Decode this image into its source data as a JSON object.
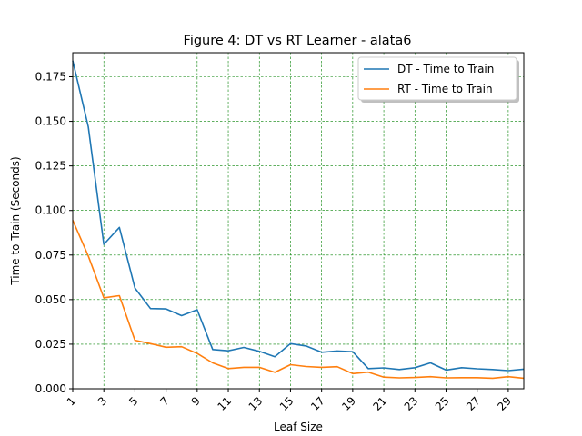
{
  "chart_data": {
    "type": "line",
    "title": "Figure 4: DT vs RT Learner - alata6",
    "xlabel": "Leaf Size",
    "ylabel": "Time to Train (Seconds)",
    "xlim": [
      1,
      30
    ],
    "ylim": [
      0,
      0.1885
    ],
    "xticks": [
      1,
      3,
      5,
      7,
      9,
      11,
      13,
      15,
      17,
      19,
      21,
      23,
      25,
      27,
      29
    ],
    "yticks": [
      "0.000",
      "0.025",
      "0.050",
      "0.075",
      "0.100",
      "0.125",
      "0.150",
      "0.175"
    ],
    "grid": true,
    "grid_color": "#008000",
    "legend_position": "upper right",
    "x": [
      1,
      2,
      3,
      4,
      5,
      6,
      7,
      8,
      9,
      10,
      11,
      12,
      13,
      14,
      15,
      16,
      17,
      18,
      19,
      20,
      21,
      22,
      23,
      24,
      25,
      26,
      27,
      28,
      29,
      30
    ],
    "series": [
      {
        "name": "DT - Time to Train",
        "color": "#1f77b4",
        "values": [
          0.184,
          0.147,
          0.081,
          0.0905,
          0.0565,
          0.045,
          0.0448,
          0.041,
          0.0443,
          0.022,
          0.0213,
          0.0232,
          0.021,
          0.018,
          0.0253,
          0.024,
          0.0205,
          0.0212,
          0.0208,
          0.0113,
          0.0117,
          0.0108,
          0.0118,
          0.0145,
          0.0105,
          0.0118,
          0.0112,
          0.0108,
          0.0102,
          0.011
        ]
      },
      {
        "name": "RT - Time to Train",
        "color": "#ff7f0e",
        "values": [
          0.0945,
          0.0745,
          0.051,
          0.0522,
          0.0272,
          0.0253,
          0.0233,
          0.0236,
          0.0198,
          0.0145,
          0.0113,
          0.012,
          0.012,
          0.0092,
          0.0135,
          0.0125,
          0.012,
          0.0124,
          0.0085,
          0.0093,
          0.0065,
          0.0061,
          0.0063,
          0.0068,
          0.0061,
          0.0062,
          0.0062,
          0.0059,
          0.0068,
          0.0059
        ]
      }
    ]
  }
}
